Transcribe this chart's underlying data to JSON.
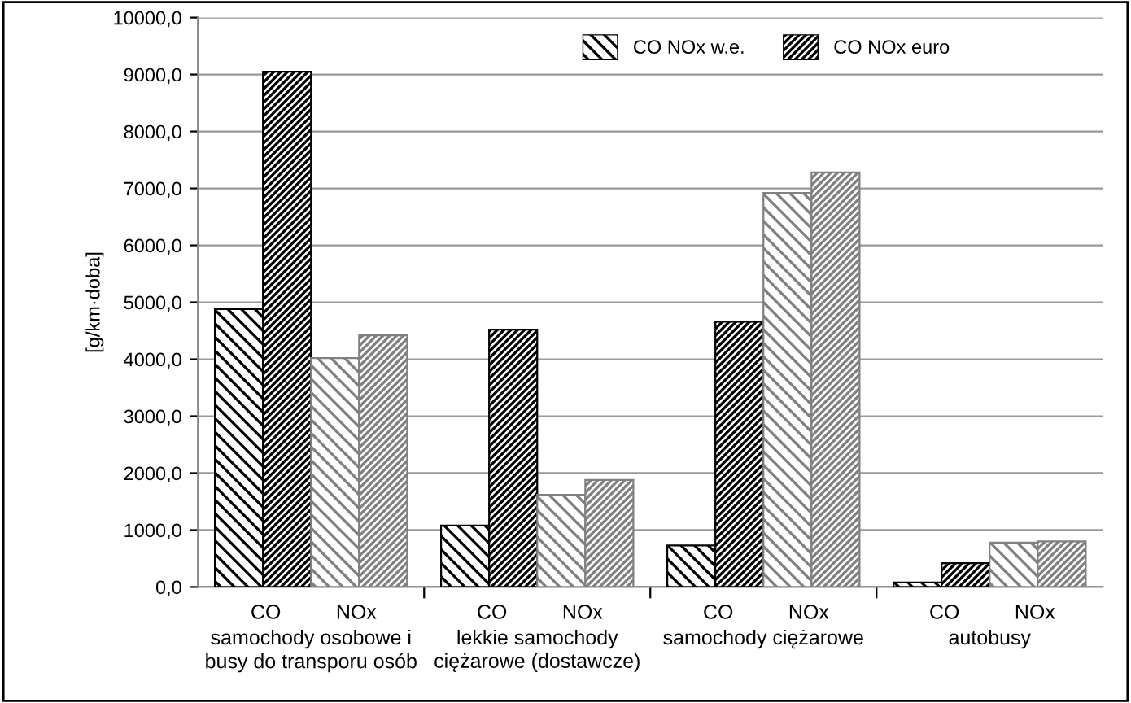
{
  "chart_data": {
    "type": "bar",
    "categories": [
      "samochody osobowe i\nbusy do transporu osób",
      "lekkie samochody\nciężarowe (dostawcze)",
      "samochody ciężarowe",
      "autobusy"
    ],
    "series": [
      {
        "name": "CO NOx w.e.",
        "color": "#000000",
        "values": [
          4880,
          1080,
          730,
          80
        ]
      },
      {
        "name": "CO NOx euro",
        "color": "#000000",
        "values": [
          9050,
          4520,
          4660,
          420
        ]
      },
      {
        "color": "#808080",
        "values": [
          4020,
          1620,
          6920,
          780
        ]
      },
      {
        "color": "#808080",
        "values": [
          4420,
          1880,
          7280,
          800
        ]
      }
    ],
    "ylabel": "[g/km·doba]",
    "ylim": [
      0,
      10000
    ],
    "yticks": [
      {
        "value": 0,
        "label": "0,0"
      },
      {
        "value": 1000,
        "label": "1000,0"
      },
      {
        "value": 2000,
        "label": "2000,0"
      },
      {
        "value": 3000,
        "label": "3000,0"
      },
      {
        "value": 4000,
        "label": "4000,0"
      },
      {
        "value": 5000,
        "label": "5000,0"
      },
      {
        "value": 6000,
        "label": "6000,0"
      },
      {
        "value": 7000,
        "label": "7000,0"
      },
      {
        "value": 8000,
        "label": "8000,0"
      },
      {
        "value": 9000,
        "label": "9000,0"
      },
      {
        "value": 10000,
        "label": "10000,0"
      }
    ],
    "annotations": [
      "CO",
      "NOx",
      "CO",
      "NOx",
      "CO",
      "NOx",
      "CO",
      "NOx"
    ],
    "grid": "y",
    "legend": "top right"
  }
}
